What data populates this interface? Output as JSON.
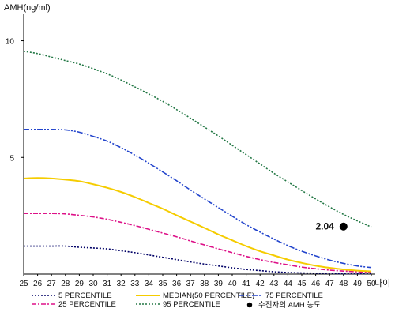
{
  "chart_data": {
    "type": "line",
    "ylabel": "AMH(ng/ml)",
    "xlabel": "나이",
    "xlim": [
      25,
      50
    ],
    "ylim": [
      0,
      11
    ],
    "x": [
      25,
      26,
      27,
      28,
      29,
      30,
      31,
      32,
      33,
      34,
      35,
      36,
      37,
      38,
      39,
      40,
      41,
      42,
      43,
      44,
      45,
      46,
      47,
      48,
      49,
      50
    ],
    "yticks": [
      5,
      10
    ],
    "series": [
      {
        "name": "5 PERCENTILE",
        "color": "#000066",
        "dash": "2,2",
        "values": [
          1.2,
          1.2,
          1.2,
          1.2,
          1.15,
          1.12,
          1.08,
          1.0,
          0.92,
          0.82,
          0.72,
          0.62,
          0.52,
          0.43,
          0.35,
          0.27,
          0.2,
          0.15,
          0.1,
          0.07,
          0.05,
          0.04,
          0.03,
          0.02,
          0.02,
          0.02
        ]
      },
      {
        "name": "25 PERCENTILE",
        "color": "#dd1188",
        "dash": "6,2,2,2",
        "values": [
          2.6,
          2.6,
          2.6,
          2.58,
          2.52,
          2.45,
          2.35,
          2.22,
          2.08,
          1.92,
          1.76,
          1.6,
          1.42,
          1.25,
          1.08,
          0.92,
          0.76,
          0.62,
          0.5,
          0.4,
          0.3,
          0.23,
          0.17,
          0.13,
          0.1,
          0.08
        ]
      },
      {
        "name": "MEDIAN(50 PERCENTILE)",
        "color": "#f5cc00",
        "dash": "",
        "values": [
          4.1,
          4.12,
          4.1,
          4.05,
          3.98,
          3.85,
          3.7,
          3.52,
          3.3,
          3.05,
          2.8,
          2.52,
          2.25,
          1.98,
          1.7,
          1.45,
          1.2,
          0.98,
          0.8,
          0.62,
          0.48,
          0.36,
          0.27,
          0.2,
          0.15,
          0.12
        ]
      },
      {
        "name": "75 PERCENTILE",
        "color": "#2244cc",
        "dash": "7,2,2,2,2,2",
        "values": [
          6.2,
          6.2,
          6.2,
          6.18,
          6.08,
          5.9,
          5.7,
          5.42,
          5.1,
          4.75,
          4.38,
          4.0,
          3.6,
          3.22,
          2.85,
          2.48,
          2.12,
          1.8,
          1.5,
          1.22,
          0.98,
          0.78,
          0.6,
          0.46,
          0.35,
          0.28
        ]
      },
      {
        "name": "95 PERCENTILE",
        "color": "#227744",
        "dash": "2,2",
        "values": [
          9.55,
          9.45,
          9.3,
          9.15,
          9.0,
          8.8,
          8.58,
          8.32,
          8.02,
          7.72,
          7.4,
          7.05,
          6.68,
          6.3,
          5.92,
          5.52,
          5.12,
          4.72,
          4.32,
          3.95,
          3.58,
          3.22,
          2.88,
          2.56,
          2.28,
          2.02
        ]
      }
    ],
    "highlight": {
      "name": "수진자의 AMH 농도",
      "x": 48,
      "y": 2.04,
      "label": "2.04",
      "color": "#000000"
    }
  }
}
